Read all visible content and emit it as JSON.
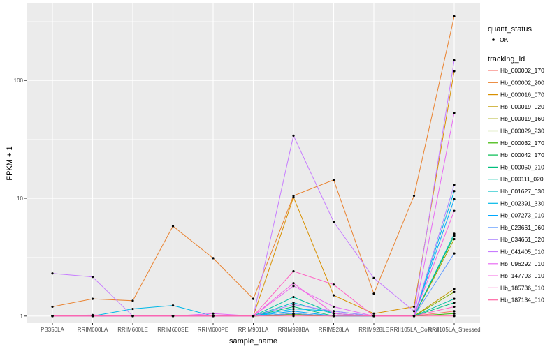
{
  "chart_data": {
    "type": "line",
    "xlabel": "sample_name",
    "ylabel": "FPKM + 1",
    "y_scale": "log10",
    "ylim": [
      0.87,
      450
    ],
    "y_ticks": [
      {
        "value": 1,
        "label": "1"
      },
      {
        "value": 10,
        "label": "10"
      },
      {
        "value": 100,
        "label": "100"
      }
    ],
    "categories": [
      "PB350LA",
      "RRIM600LA",
      "RRIM600LE",
      "RRIM600SE",
      "RRIM600PE",
      "RRIM901LA",
      "RRIM928BA",
      "RRIM928LA",
      "RRIM928LE",
      "RRII105LA_Control",
      "RRII105LA_Stressed"
    ],
    "shape_legend": {
      "title": "quant_status",
      "entries": [
        "OK"
      ]
    },
    "color_legend_title": "tracking_id",
    "series": [
      {
        "name": "Hb_000002_170",
        "color": "#F8766D",
        "values": [
          1,
          1,
          1,
          1,
          1,
          1,
          1.05,
          1,
          1,
          1,
          1.1
        ]
      },
      {
        "name": "Hb_000002_200",
        "color": "#EA8331",
        "values": [
          1.2,
          1.4,
          1.35,
          5.8,
          3.1,
          1.4,
          10.5,
          14.3,
          1.55,
          10.5,
          350
        ]
      },
      {
        "name": "Hb_000016_070",
        "color": "#D89000",
        "values": [
          1,
          1,
          1,
          1,
          1,
          1,
          10.2,
          1.5,
          1.05,
          1.2,
          120
        ]
      },
      {
        "name": "Hb_000019_020",
        "color": "#C09B00",
        "values": [
          1,
          1,
          1,
          1,
          1,
          1,
          1.05,
          1,
          1,
          1,
          1.7
        ]
      },
      {
        "name": "Hb_000019_160",
        "color": "#A3A500",
        "values": [
          1,
          1,
          1,
          1,
          1,
          1,
          1.02,
          1,
          1,
          1,
          4.5
        ]
      },
      {
        "name": "Hb_000029_230",
        "color": "#7CAE00",
        "values": [
          1,
          1,
          1,
          1,
          1,
          1,
          1.03,
          1,
          1,
          1,
          1.6
        ]
      },
      {
        "name": "Hb_000032_170",
        "color": "#39B600",
        "values": [
          1,
          1,
          1,
          1,
          1,
          1,
          1.02,
          1,
          1,
          1,
          1.05
        ]
      },
      {
        "name": "Hb_000042_170",
        "color": "#00BB4E",
        "values": [
          1,
          1,
          1,
          1,
          1,
          1,
          1.05,
          1,
          1,
          1,
          4.8
        ]
      },
      {
        "name": "Hb_000050_210",
        "color": "#00BF7D",
        "values": [
          1,
          1,
          1,
          1,
          1,
          1,
          1.2,
          1,
          1,
          1,
          1.3
        ]
      },
      {
        "name": "Hb_000111_020",
        "color": "#00C1A3",
        "values": [
          1,
          1,
          1,
          1,
          1,
          1,
          1.45,
          1.05,
          1,
          1,
          1.4
        ]
      },
      {
        "name": "Hb_001627_030",
        "color": "#00BFC4",
        "values": [
          1,
          1,
          1,
          1,
          1,
          1,
          1.3,
          1.05,
          1,
          1,
          5
        ]
      },
      {
        "name": "Hb_002391_330",
        "color": "#00B8E7",
        "values": [
          1,
          1,
          1.15,
          1.23,
          1,
          1,
          1.15,
          1.1,
          1,
          1,
          11.5
        ]
      },
      {
        "name": "Hb_007273_010",
        "color": "#00A9FF",
        "values": [
          1,
          1,
          1,
          1,
          1,
          1,
          1.1,
          1,
          1,
          1,
          9.8
        ]
      },
      {
        "name": "Hb_023661_060",
        "color": "#619CFF",
        "values": [
          1,
          1,
          1,
          1,
          1,
          1,
          1.05,
          1,
          1,
          1,
          3.4
        ]
      },
      {
        "name": "Hb_034661_020",
        "color": "#AE87FF",
        "values": [
          1,
          1,
          1,
          1,
          1,
          1,
          1.25,
          1.1,
          1,
          1,
          13
        ]
      },
      {
        "name": "Hb_041405_010",
        "color": "#C77CFF",
        "values": [
          2.3,
          2.15,
          1,
          1,
          1,
          1,
          34,
          6.3,
          2.1,
          1.1,
          148
        ]
      },
      {
        "name": "Hb_096292_010",
        "color": "#E76BF3",
        "values": [
          1,
          1.02,
          1,
          1,
          1.05,
          1,
          1.8,
          1.2,
          1,
          1,
          53
        ]
      },
      {
        "name": "Hb_147793_010",
        "color": "#F564E3",
        "values": [
          1,
          1,
          1,
          1,
          1,
          1,
          1.9,
          1.05,
          1,
          1,
          7.8
        ]
      },
      {
        "name": "Hb_185736_010",
        "color": "#FF61C3",
        "values": [
          1,
          1,
          1,
          1,
          1,
          1,
          2.4,
          1.85,
          1,
          1,
          1.2
        ]
      },
      {
        "name": "Hb_187134_010",
        "color": "#FF67A4",
        "values": [
          1,
          1,
          1,
          1,
          1,
          1,
          1,
          1,
          1,
          1,
          1
        ]
      }
    ]
  }
}
